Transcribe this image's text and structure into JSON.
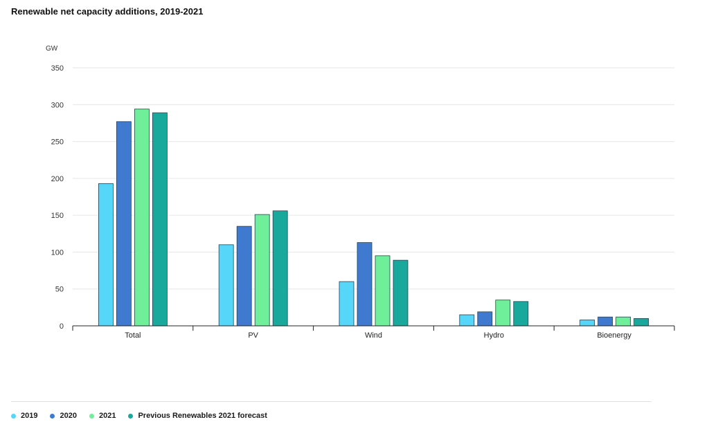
{
  "title": "Renewable net capacity additions, 2019-2021",
  "chart_data": {
    "type": "bar",
    "title": "Renewable net capacity additions, 2019-2021",
    "ylabel": "GW",
    "xlabel": "",
    "ylim": [
      0,
      350
    ],
    "yticks": [
      0,
      50,
      100,
      150,
      200,
      250,
      300,
      350
    ],
    "grid": true,
    "legend_position": "bottom",
    "categories": [
      "Total",
      "PV",
      "Wind",
      "Hydro",
      "Bioenergy"
    ],
    "series": [
      {
        "name": "2019",
        "color": "#56d6f8",
        "values": [
          193,
          110,
          60,
          15,
          8
        ]
      },
      {
        "name": "2020",
        "color": "#3f7ad0",
        "values": [
          277,
          135,
          113,
          19,
          12
        ]
      },
      {
        "name": "2021",
        "color": "#70ef9a",
        "values": [
          294,
          151,
          95,
          35,
          12
        ]
      },
      {
        "name": "Previous Renewables 2021 forecast",
        "color": "#18a99c",
        "values": [
          289,
          156,
          89,
          33,
          10
        ]
      }
    ]
  }
}
